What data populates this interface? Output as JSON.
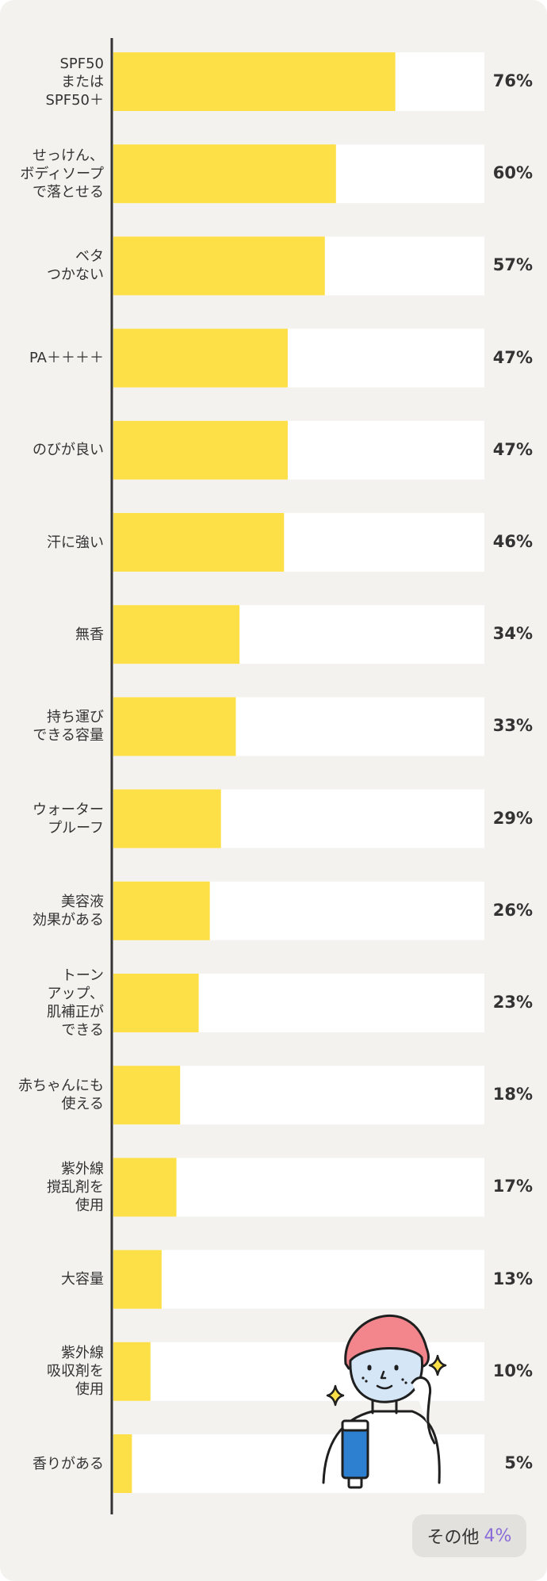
{
  "chart_data": {
    "type": "bar",
    "orientation": "horizontal",
    "categories": [
      "SPF50\nまたは\nSPF50＋",
      "せっけん、\nボディソープ\nで落とせる",
      "ベタ\nつかない",
      "PA＋＋＋＋",
      "のびが良い",
      "汗に強い",
      "無香",
      "持ち運び\nできる容量",
      "ウォーター\nプルーフ",
      "美容液\n効果がある",
      "トーン\nアップ、\n肌補正が\nできる",
      "赤ちゃんにも\n使える",
      "紫外線\n撹乱剤を\n使用",
      "大容量",
      "紫外線\n吸収剤を\n使用",
      "香りがある"
    ],
    "values": [
      76,
      60,
      57,
      47,
      47,
      46,
      34,
      33,
      29,
      26,
      23,
      18,
      17,
      13,
      10,
      5
    ],
    "value_labels": [
      "76%",
      "60%",
      "57%",
      "47%",
      "47%",
      "46%",
      "34%",
      "33%",
      "29%",
      "26%",
      "23%",
      "18%",
      "17%",
      "13%",
      "10%",
      "5%"
    ],
    "xlim": [
      0,
      100
    ],
    "grid": false,
    "bar_color": "#fde047",
    "track_color": "#ffffff"
  },
  "other": {
    "label": "その他",
    "value": "4%"
  },
  "colors": {
    "background": "#f3f2ef",
    "axis": "#333333",
    "other_value": "#8a6bd8"
  },
  "illustration": {
    "icon": "person-with-sunscreen-illustration"
  }
}
